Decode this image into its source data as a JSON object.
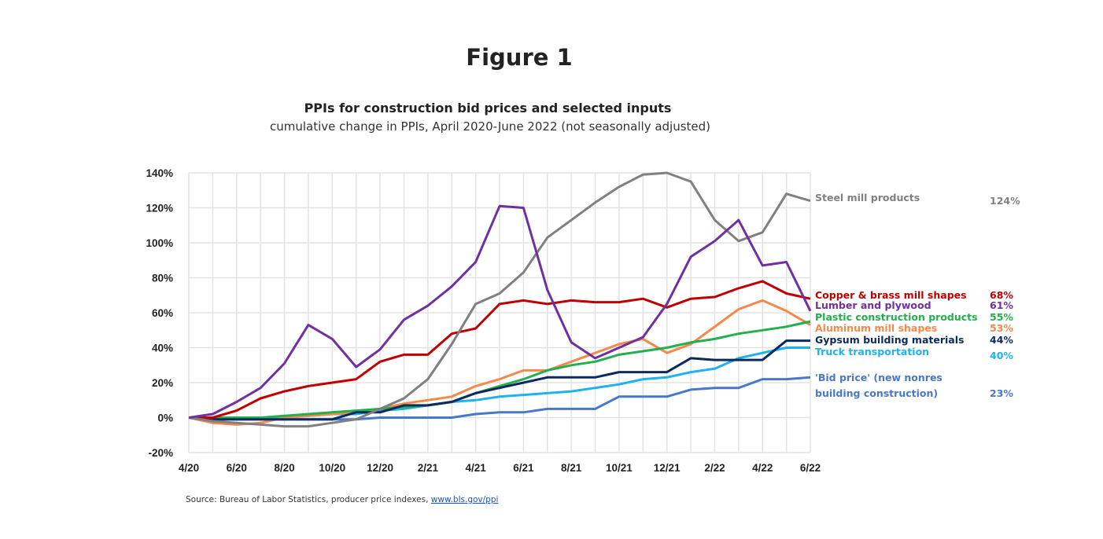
{
  "figure_label": "Figure 1",
  "source": {
    "text": "Source: Bureau of Labor Statistics, producer price indexes, ",
    "link": "www.bls.gov/ppi"
  },
  "chart_data": {
    "type": "line",
    "title": "PPIs for construction bid prices and selected inputs",
    "subtitle": "cumulative change in PPIs, April 2020-June 2022 (not seasonally adjusted)",
    "xlabel": "",
    "ylabel": "",
    "x": [
      "4/20",
      "5/20",
      "6/20",
      "7/20",
      "8/20",
      "9/20",
      "10/20",
      "11/20",
      "12/20",
      "1/21",
      "2/21",
      "3/21",
      "4/21",
      "5/21",
      "6/21",
      "7/21",
      "8/21",
      "9/21",
      "10/21",
      "11/21",
      "12/21",
      "1/22",
      "2/22",
      "3/22",
      "4/22",
      "5/22",
      "6/22"
    ],
    "x_tick_labels": [
      "4/20",
      "6/20",
      "8/20",
      "10/20",
      "12/20",
      "2/21",
      "4/21",
      "6/21",
      "8/21",
      "10/21",
      "12/21",
      "2/22",
      "4/22",
      "6/22"
    ],
    "y_tick_labels": [
      "-20%",
      "0%",
      "20%",
      "40%",
      "60%",
      "80%",
      "100%",
      "120%",
      "140%"
    ],
    "ylim": [
      -20,
      140
    ],
    "grid": true,
    "legend": "right, direct labels",
    "series": [
      {
        "name": "Steel mill products",
        "end_label": "124%",
        "color": "#808080",
        "values": [
          0,
          -2,
          -3,
          -4,
          -5,
          -5,
          -3,
          -1,
          5,
          11,
          22,
          42,
          65,
          71,
          83,
          103,
          113,
          123,
          132,
          139,
          140,
          135,
          113,
          101,
          106,
          128,
          124
        ]
      },
      {
        "name": "Copper & brass mill shapes",
        "end_label": "68%",
        "color": "#c00000",
        "values": [
          0,
          0,
          4,
          11,
          15,
          18,
          20,
          22,
          32,
          36,
          36,
          48,
          51,
          65,
          67,
          65,
          67,
          66,
          66,
          68,
          63,
          68,
          69,
          74,
          78,
          71,
          68
        ]
      },
      {
        "name": "Lumber and plywood",
        "end_label": "61%",
        "color": "#7030a0",
        "values": [
          0,
          2,
          9,
          17,
          31,
          53,
          45,
          29,
          39,
          56,
          64,
          75,
          89,
          121,
          120,
          73,
          43,
          34,
          40,
          46,
          65,
          92,
          101,
          113,
          87,
          89,
          61
        ]
      },
      {
        "name": "Plastic construction products",
        "end_label": "55%",
        "color": "#22b04f",
        "values": [
          0,
          0,
          0,
          0,
          1,
          2,
          3,
          4,
          5,
          6,
          7,
          9,
          14,
          18,
          22,
          27,
          30,
          32,
          36,
          38,
          40,
          43,
          45,
          48,
          50,
          52,
          55
        ]
      },
      {
        "name": "Aluminum mill shapes",
        "end_label": "53%",
        "color": "#f4894b",
        "values": [
          0,
          -3,
          -4,
          -3,
          0,
          1,
          2,
          3,
          5,
          8,
          10,
          12,
          18,
          22,
          27,
          27,
          32,
          37,
          42,
          45,
          37,
          42,
          52,
          62,
          67,
          61,
          53
        ]
      },
      {
        "name": "Gypsum building materials",
        "end_label": "44%",
        "color": "#0d2a5e",
        "values": [
          0,
          -1,
          -1,
          -1,
          -1,
          -1,
          -1,
          3,
          3,
          7,
          7,
          9,
          14,
          17,
          20,
          23,
          23,
          23,
          26,
          26,
          26,
          34,
          33,
          33,
          33,
          44,
          44
        ]
      },
      {
        "name": "Truck transportation",
        "end_label": "40%",
        "color": "#1fb2f0",
        "values": [
          0,
          0,
          0,
          0,
          0,
          1,
          2,
          2,
          4,
          5,
          7,
          9,
          10,
          12,
          13,
          14,
          15,
          17,
          19,
          22,
          23,
          26,
          28,
          34,
          37,
          40,
          40
        ]
      },
      {
        "name": "'Bid price' (new nonres",
        "name_line2": "building  construction)",
        "end_label": "23%",
        "color": "#4a78c8",
        "values": [
          0,
          -1,
          -1,
          -1,
          -1,
          -1,
          -1,
          -1,
          0,
          0,
          0,
          0,
          2,
          3,
          3,
          5,
          5,
          5,
          12,
          12,
          12,
          16,
          17,
          17,
          22,
          22,
          23
        ]
      }
    ]
  }
}
